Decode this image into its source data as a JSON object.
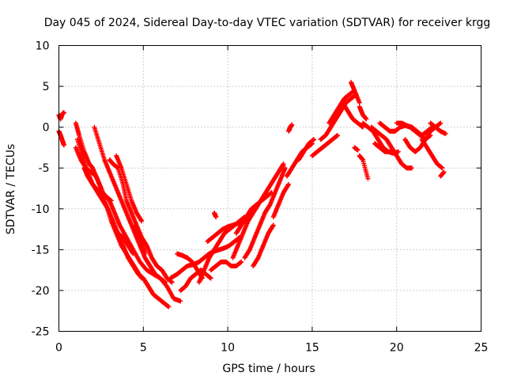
{
  "chart_data": {
    "type": "scatter",
    "title": "Day 045 of 2024, Sidereal Day-to-day VTEC variation (SDTVAR) for receiver krgg",
    "xlabel": "GPS time / hours",
    "ylabel": "SDTVAR / TECUs",
    "xlim": [
      0,
      25
    ],
    "ylim": [
      -25,
      10
    ],
    "xticks": [
      0,
      5,
      10,
      15,
      20,
      25
    ],
    "yticks": [
      -25,
      -20,
      -15,
      -10,
      -5,
      0,
      5,
      10
    ],
    "grid": true,
    "marker": "+",
    "series_color": "#ff0000",
    "series": [
      {
        "name": "s1",
        "x": [
          0.0,
          0.1,
          0.2,
          0.3
        ],
        "y": [
          1.5,
          1.0,
          1.6,
          1.8
        ]
      },
      {
        "name": "s2",
        "x": [
          0.0,
          0.1,
          0.2,
          0.3
        ],
        "y": [
          -0.5,
          -1.0,
          -1.6,
          -2.2
        ]
      },
      {
        "name": "s3",
        "x": [
          1.0,
          1.2,
          1.5,
          1.8,
          2.0,
          2.3,
          2.6,
          3.0,
          3.3,
          3.6,
          4.0,
          4.4,
          4.8,
          5.2,
          5.6,
          6.0,
          6.4,
          6.8,
          7.2
        ],
        "y": [
          0.5,
          -1.0,
          -3.0,
          -4.5,
          -5.0,
          -6.5,
          -8.0,
          -9.0,
          -10.5,
          -12.0,
          -13.5,
          -15.0,
          -16.5,
          -17.5,
          -18.0,
          -18.5,
          -19.5,
          -21.0,
          -21.3
        ]
      },
      {
        "name": "s4",
        "x": [
          1.1,
          1.4,
          1.7,
          2.0,
          2.3,
          2.6,
          2.9,
          3.2,
          3.5,
          3.8,
          4.1,
          4.4,
          4.7,
          5.0,
          5.3,
          5.6,
          5.9,
          6.2,
          6.5
        ],
        "y": [
          -1.5,
          -3.5,
          -5.5,
          -7.0,
          -8.0,
          -9.0,
          -10.0,
          -11.5,
          -13.0,
          -14.5,
          -16.0,
          -17.0,
          -18.0,
          -18.5,
          -19.5,
          -20.5,
          -21.0,
          -21.5,
          -22.0
        ]
      },
      {
        "name": "s5",
        "x": [
          1.0,
          1.3,
          1.6,
          1.9,
          2.2,
          2.5,
          2.8,
          3.1,
          3.4,
          3.7,
          4.0,
          4.3,
          4.6,
          4.9
        ],
        "y": [
          -2.5,
          -4.0,
          -5.0,
          -5.5,
          -6.0,
          -7.5,
          -9.5,
          -11.5,
          -13.0,
          -14.5,
          -15.5,
          -16.5,
          -17.5,
          -18.5
        ]
      },
      {
        "name": "s6",
        "x": [
          1.5,
          1.7,
          2.0,
          2.2,
          2.5,
          2.8,
          3.1
        ],
        "y": [
          -5.0,
          -6.0,
          -7.0,
          -7.5,
          -8.0,
          -8.5,
          -9.0
        ]
      },
      {
        "name": "s7",
        "x": [
          2.1,
          2.4,
          2.7,
          3.0,
          3.3,
          3.6,
          3.9,
          4.2,
          4.5,
          4.8,
          5.1,
          5.4,
          5.7,
          6.0,
          6.3
        ],
        "y": [
          0.0,
          -2.0,
          -4.0,
          -5.5,
          -7.0,
          -8.5,
          -10.0,
          -11.5,
          -13.0,
          -14.5,
          -16.0,
          -17.0,
          -18.0,
          -18.5,
          -19.0
        ]
      },
      {
        "name": "s8",
        "x": [
          3.0,
          3.2,
          3.5,
          3.8,
          4.0,
          4.3,
          4.6,
          4.9,
          5.2,
          5.5,
          5.8,
          6.1,
          6.4,
          6.7
        ],
        "y": [
          -4.0,
          -4.5,
          -5.0,
          -7.0,
          -9.0,
          -10.5,
          -12.0,
          -13.5,
          -14.5,
          -16.0,
          -17.0,
          -17.5,
          -18.5,
          -19.0
        ]
      },
      {
        "name": "s9",
        "x": [
          3.4,
          3.7,
          4.0,
          4.3,
          4.6,
          4.9
        ],
        "y": [
          -3.5,
          -5.0,
          -7.0,
          -9.0,
          -10.5,
          -11.5
        ]
      },
      {
        "name": "s10",
        "x": [
          3.5,
          3.8,
          4.1,
          4.4
        ],
        "y": [
          -13.0,
          -13.5,
          -14.5,
          -15.5
        ]
      },
      {
        "name": "s11",
        "x": [
          4.5,
          4.7,
          4.9,
          5.1
        ],
        "y": [
          -12.0,
          -13.0,
          -14.0,
          -15.5
        ]
      },
      {
        "name": "s12",
        "x": [
          6.6,
          7.0,
          7.3,
          7.6,
          8.0,
          8.3,
          8.6,
          8.9,
          9.2,
          9.5,
          9.8,
          10.1,
          10.4,
          10.7
        ],
        "y": [
          -18.5,
          -18.0,
          -17.5,
          -17.0,
          -16.8,
          -16.5,
          -16.0,
          -15.5,
          -15.2,
          -15.0,
          -14.8,
          -14.5,
          -14.0,
          -13.5
        ]
      },
      {
        "name": "s13",
        "x": [
          7.0,
          7.3,
          7.6,
          7.9,
          8.2,
          8.5
        ],
        "y": [
          -15.5,
          -15.7,
          -16.0,
          -16.5,
          -17.5,
          -18.5
        ]
      },
      {
        "name": "s14",
        "x": [
          7.2,
          7.5,
          7.8,
          8.1,
          8.4,
          8.7,
          9.0
        ],
        "y": [
          -20.0,
          -19.5,
          -18.5,
          -18.0,
          -17.5,
          -18.0,
          -18.5
        ]
      },
      {
        "name": "s15",
        "x": [
          8.3,
          8.6,
          8.9,
          9.2,
          9.5,
          9.8,
          10.1,
          10.4,
          10.7,
          11.0
        ],
        "y": [
          -19.0,
          -17.5,
          -16.0,
          -15.0,
          -14.0,
          -13.0,
          -12.5,
          -12.0,
          -11.5,
          -11.0
        ]
      },
      {
        "name": "s16",
        "x": [
          8.8,
          9.1,
          9.4,
          9.7,
          10.0,
          10.3,
          10.6,
          10.9
        ],
        "y": [
          -14.0,
          -13.5,
          -13.0,
          -12.5,
          -12.2,
          -12.0,
          -11.8,
          -11.5
        ]
      },
      {
        "name": "s17",
        "x": [
          9.0,
          9.3,
          9.6,
          9.9,
          10.2,
          10.5,
          10.8
        ],
        "y": [
          -17.5,
          -17.0,
          -16.5,
          -16.5,
          -17.0,
          -17.0,
          -16.5
        ]
      },
      {
        "name": "s18",
        "x": [
          9.2,
          9.3
        ],
        "y": [
          -10.5,
          -11.0
        ]
      },
      {
        "name": "s19",
        "x": [
          10.3,
          10.6,
          10.9,
          11.2,
          11.5,
          11.8,
          12.1,
          12.4,
          12.7,
          13.0,
          13.3
        ],
        "y": [
          -16.0,
          -14.5,
          -13.0,
          -11.5,
          -10.5,
          -9.5,
          -8.5,
          -7.5,
          -6.5,
          -5.5,
          -4.5
        ]
      },
      {
        "name": "s20",
        "x": [
          10.5,
          10.8,
          11.1,
          11.4,
          11.7,
          12.0,
          12.3,
          12.6
        ],
        "y": [
          -13.0,
          -12.0,
          -11.0,
          -10.0,
          -9.5,
          -9.0,
          -8.5,
          -8.0
        ]
      },
      {
        "name": "s21",
        "x": [
          11.0,
          11.3,
          11.6,
          11.9,
          12.2,
          12.5,
          12.8,
          13.1,
          13.4
        ],
        "y": [
          -16.0,
          -15.0,
          -13.5,
          -12.0,
          -10.5,
          -9.5,
          -8.0,
          -6.5,
          -5.0
        ]
      },
      {
        "name": "s22",
        "x": [
          11.5,
          11.8,
          12.1,
          12.4,
          12.7
        ],
        "y": [
          -17.0,
          -16.0,
          -14.5,
          -13.0,
          -12.0
        ]
      },
      {
        "name": "s23",
        "x": [
          12.7,
          13.0,
          13.3,
          13.6
        ],
        "y": [
          -11.0,
          -9.5,
          -8.0,
          -7.0
        ]
      },
      {
        "name": "s24",
        "x": [
          13.6,
          13.7,
          13.8
        ],
        "y": [
          -0.5,
          0.0,
          0.3
        ]
      },
      {
        "name": "s25",
        "x": [
          13.5,
          13.8,
          14.1,
          14.4,
          14.7,
          15.0
        ],
        "y": [
          -6.0,
          -5.0,
          -4.0,
          -3.0,
          -2.5,
          -2.0
        ]
      },
      {
        "name": "s26",
        "x": [
          14.2,
          14.5,
          14.8,
          15.1
        ],
        "y": [
          -4.0,
          -3.0,
          -2.0,
          -1.5
        ]
      },
      {
        "name": "s27",
        "x": [
          15.0,
          15.3,
          15.6,
          15.9,
          16.2,
          16.5
        ],
        "y": [
          -3.5,
          -3.0,
          -2.5,
          -2.0,
          -1.5,
          -1.0
        ]
      },
      {
        "name": "s28",
        "x": [
          15.5,
          15.8,
          16.1,
          16.4,
          16.7,
          17.0,
          17.3,
          17.6
        ],
        "y": [
          -1.5,
          -1.0,
          0.0,
          1.0,
          2.0,
          3.0,
          3.5,
          4.0
        ]
      },
      {
        "name": "s29",
        "x": [
          16.0,
          16.3,
          16.6,
          16.9,
          17.2,
          17.5,
          17.8
        ],
        "y": [
          0.5,
          1.5,
          2.5,
          3.5,
          4.0,
          4.5,
          3.0
        ]
      },
      {
        "name": "s30",
        "x": [
          16.8,
          17.1,
          17.4,
          17.7,
          18.0
        ],
        "y": [
          3.0,
          2.0,
          1.0,
          0.5,
          0.0
        ]
      },
      {
        "name": "s31",
        "x": [
          17.3,
          17.5
        ],
        "y": [
          5.5,
          4.5
        ]
      },
      {
        "name": "s32",
        "x": [
          17.8,
          18.0,
          18.2
        ],
        "y": [
          2.5,
          1.5,
          1.0
        ]
      },
      {
        "name": "s33",
        "x": [
          17.5,
          17.7
        ],
        "y": [
          -2.5,
          -2.8
        ]
      },
      {
        "name": "s34",
        "x": [
          17.8,
          18.0,
          18.3
        ],
        "y": [
          -3.5,
          -4.0,
          -6.3
        ]
      },
      {
        "name": "s35",
        "x": [
          18.0,
          18.3,
          18.6,
          18.9,
          19.2,
          19.5,
          19.8,
          20.1
        ],
        "y": [
          0.5,
          0.0,
          -0.5,
          -1.5,
          -2.5,
          -3.0,
          -3.2,
          -3.0
        ]
      },
      {
        "name": "s36",
        "x": [
          18.5,
          18.8,
          19.1,
          19.4,
          19.7,
          20.0,
          20.3,
          20.6,
          20.9
        ],
        "y": [
          0.0,
          -0.5,
          -1.0,
          -1.5,
          -2.5,
          -3.5,
          -4.5,
          -5.0,
          -5.0
        ]
      },
      {
        "name": "s37",
        "x": [
          18.7,
          19.0,
          19.3,
          19.6,
          19.9
        ],
        "y": [
          -2.0,
          -2.5,
          -3.0,
          -3.0,
          -3.2
        ]
      },
      {
        "name": "s38",
        "x": [
          19.0,
          19.3,
          19.6,
          19.9,
          20.2,
          20.5,
          20.8,
          21.1,
          21.4,
          21.7,
          22.0
        ],
        "y": [
          0.5,
          0.0,
          -0.5,
          -0.5,
          0.0,
          0.2,
          0.0,
          -0.5,
          -1.0,
          -1.5,
          -1.0
        ]
      },
      {
        "name": "s39",
        "x": [
          20.0,
          20.3,
          20.6,
          20.9,
          21.2,
          21.5,
          21.8,
          22.1
        ],
        "y": [
          0.5,
          0.5,
          0.2,
          0.0,
          -0.5,
          -1.0,
          -0.5,
          0.0
        ]
      },
      {
        "name": "s40",
        "x": [
          20.5,
          20.8,
          21.1,
          21.4,
          21.7,
          22.0,
          22.3,
          22.6
        ],
        "y": [
          -1.5,
          -2.5,
          -3.0,
          -2.5,
          -1.5,
          -0.5,
          0.0,
          0.5
        ]
      },
      {
        "name": "s41",
        "x": [
          21.5,
          21.8,
          22.1,
          22.4,
          22.7
        ],
        "y": [
          -1.5,
          -2.5,
          -3.5,
          -4.5,
          -5.0
        ]
      },
      {
        "name": "s42",
        "x": [
          22.0,
          22.3,
          22.6,
          22.9
        ],
        "y": [
          0.5,
          0.0,
          -0.5,
          -0.8
        ]
      },
      {
        "name": "s43",
        "x": [
          22.6,
          22.8
        ],
        "y": [
          -6.0,
          -5.5
        ]
      }
    ]
  }
}
